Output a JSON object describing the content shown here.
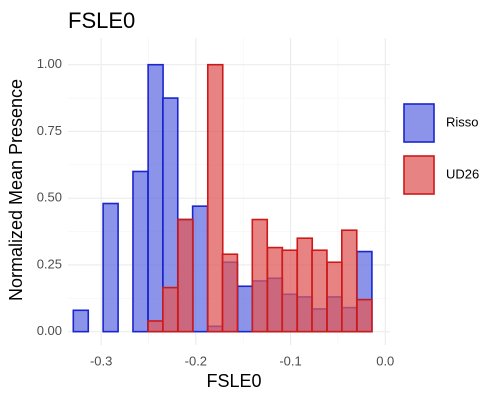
{
  "chart_data": {
    "type": "bar",
    "title": "FSLE0",
    "xlabel": "FSLE0",
    "ylabel": "Normalized Mean Presence",
    "xlim": [
      -0.335,
      0.005
    ],
    "ylim": [
      -0.05,
      1.1
    ],
    "x_ticks": [
      -0.3,
      -0.2,
      -0.1,
      0.0
    ],
    "x_tick_labels": [
      "-0.3",
      "-0.2",
      "-0.1",
      "0.0"
    ],
    "y_ticks": [
      0,
      0.25,
      0.5,
      0.75,
      1.0
    ],
    "y_tick_labels": [
      "0.00",
      "0.25",
      "0.50",
      "0.75",
      "1.00"
    ],
    "grid": true,
    "legend_position": "right",
    "bin_width": 0.0158,
    "series": [
      {
        "name": "Risso",
        "fill": "#6670e3",
        "stroke": "#1a26cc",
        "bins": [
          {
            "x": -0.3215,
            "y": 0.08
          },
          {
            "x": -0.29,
            "y": 0.48
          },
          {
            "x": -0.2585,
            "y": 0.6
          },
          {
            "x": -0.2425,
            "y": 1.0
          },
          {
            "x": -0.227,
            "y": 0.875
          },
          {
            "x": -0.211,
            "y": 0.42
          },
          {
            "x": -0.1955,
            "y": 0.47
          },
          {
            "x": -0.1795,
            "y": 0.02
          },
          {
            "x": -0.164,
            "y": 0.26
          },
          {
            "x": -0.148,
            "y": 0.17
          },
          {
            "x": -0.1325,
            "y": 0.19
          },
          {
            "x": -0.1165,
            "y": 0.2
          },
          {
            "x": -0.101,
            "y": 0.14
          },
          {
            "x": -0.085,
            "y": 0.13
          },
          {
            "x": -0.0695,
            "y": 0.085
          },
          {
            "x": -0.0535,
            "y": 0.13
          },
          {
            "x": -0.038,
            "y": 0.09
          },
          {
            "x": -0.022,
            "y": 0.3
          }
        ]
      },
      {
        "name": "UD26",
        "fill": "#e05a5a",
        "stroke": "#cc1a1a",
        "bins": [
          {
            "x": -0.2425,
            "y": 0.04
          },
          {
            "x": -0.227,
            "y": 0.165
          },
          {
            "x": -0.211,
            "y": 0.42
          },
          {
            "x": -0.1795,
            "y": 1.0
          },
          {
            "x": -0.164,
            "y": 0.29
          },
          {
            "x": -0.1325,
            "y": 0.42
          },
          {
            "x": -0.1165,
            "y": 0.315
          },
          {
            "x": -0.101,
            "y": 0.305
          },
          {
            "x": -0.085,
            "y": 0.35
          },
          {
            "x": -0.0695,
            "y": 0.305
          },
          {
            "x": -0.0535,
            "y": 0.26
          },
          {
            "x": -0.038,
            "y": 0.38
          },
          {
            "x": -0.022,
            "y": 0.12
          }
        ]
      }
    ]
  }
}
